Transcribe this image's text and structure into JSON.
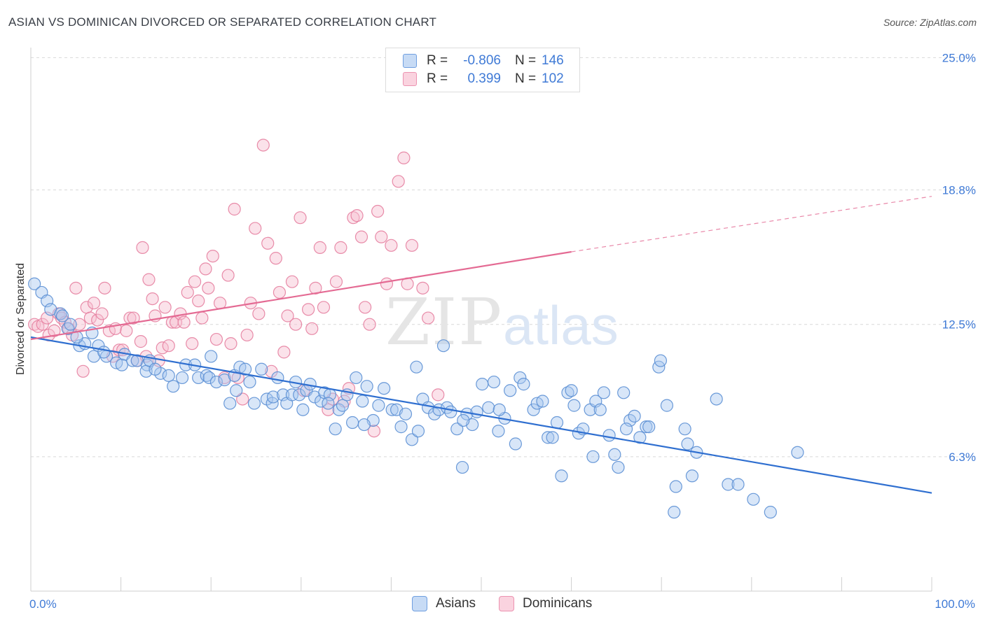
{
  "title": "ASIAN VS DOMINICAN DIVORCED OR SEPARATED CORRELATION CHART",
  "source": "Source: ZipAtlas.com",
  "legend": {
    "rows": [
      {
        "r_label": "R =",
        "r_value": "-0.806",
        "n_label": "N =",
        "n_value": "146"
      },
      {
        "r_label": "R =",
        "r_value": "0.399",
        "n_label": "N =",
        "n_value": "102"
      }
    ]
  },
  "bottom_legend": [
    "Asians",
    "Dominicans"
  ],
  "colors": {
    "asian_fill": "#a9c8f0",
    "asian_stroke": "#5b8fd4",
    "asian_line": "#2f6fd0",
    "dom_fill": "#f6bfd0",
    "dom_stroke": "#e67fa0",
    "dom_line": "#e46a93",
    "grid": "#d9d9d9",
    "tick_text": "#3f7ad6"
  },
  "chart_data": {
    "type": "scatter",
    "title": "ASIAN VS DOMINICAN DIVORCED OR SEPARATED CORRELATION CHART",
    "xlabel": "",
    "ylabel": "Divorced or Separated",
    "xlim": [
      0,
      100
    ],
    "ylim": [
      0,
      25.8
    ],
    "x_tick_labels": [
      "0.0%",
      "100.0%"
    ],
    "y_ticks": [
      6.3,
      12.5,
      18.8,
      25.0
    ],
    "y_tick_labels": [
      "6.3%",
      "12.5%",
      "18.8%",
      "25.0%"
    ],
    "series": [
      {
        "name": "Asians",
        "trend": {
          "x": [
            0,
            100
          ],
          "y": [
            11.9,
            4.6
          ],
          "dashed_from": null
        },
        "points": [
          [
            0.4,
            14.4
          ],
          [
            1.2,
            14.0
          ],
          [
            1.8,
            13.6
          ],
          [
            2.2,
            13.2
          ],
          [
            3.3,
            13.0
          ],
          [
            3.5,
            12.9
          ],
          [
            4.1,
            12.3
          ],
          [
            4.4,
            12.5
          ],
          [
            5.4,
            11.5
          ],
          [
            6.0,
            11.6
          ],
          [
            5.1,
            11.9
          ],
          [
            6.8,
            12.1
          ],
          [
            7.5,
            11.5
          ],
          [
            7.0,
            11.0
          ],
          [
            8.4,
            11.0
          ],
          [
            8.1,
            11.2
          ],
          [
            9.5,
            10.7
          ],
          [
            10.1,
            10.6
          ],
          [
            10.4,
            11.1
          ],
          [
            11.3,
            10.8
          ],
          [
            11.8,
            10.8
          ],
          [
            12.9,
            10.6
          ],
          [
            12.8,
            10.3
          ],
          [
            13.2,
            10.8
          ],
          [
            14.4,
            10.2
          ],
          [
            13.8,
            10.4
          ],
          [
            15.3,
            10.1
          ],
          [
            15.8,
            9.6
          ],
          [
            16.8,
            10.0
          ],
          [
            17.2,
            10.6
          ],
          [
            18.2,
            10.6
          ],
          [
            18.6,
            10.0
          ],
          [
            19.5,
            10.1
          ],
          [
            19.8,
            10.0
          ],
          [
            20.0,
            11.0
          ],
          [
            20.6,
            9.8
          ],
          [
            21.5,
            9.9
          ],
          [
            22.1,
            8.8
          ],
          [
            22.8,
            9.4
          ],
          [
            22.6,
            10.1
          ],
          [
            23.2,
            10.5
          ],
          [
            23.8,
            10.4
          ],
          [
            24.3,
            9.8
          ],
          [
            24.8,
            8.8
          ],
          [
            25.6,
            10.4
          ],
          [
            26.2,
            9.0
          ],
          [
            26.8,
            8.8
          ],
          [
            26.9,
            9.1
          ],
          [
            27.4,
            10.0
          ],
          [
            28.0,
            9.2
          ],
          [
            28.4,
            8.8
          ],
          [
            29.0,
            9.2
          ],
          [
            29.4,
            9.8
          ],
          [
            29.8,
            9.2
          ],
          [
            30.6,
            9.4
          ],
          [
            31.0,
            9.7
          ],
          [
            31.5,
            9.1
          ],
          [
            32.2,
            8.9
          ],
          [
            32.6,
            9.3
          ],
          [
            33.2,
            9.2
          ],
          [
            33.8,
            7.6
          ],
          [
            34.2,
            8.5
          ],
          [
            34.6,
            8.7
          ],
          [
            35.1,
            9.2
          ],
          [
            35.7,
            7.9
          ],
          [
            36.1,
            10.0
          ],
          [
            36.8,
            8.9
          ],
          [
            37.3,
            9.6
          ],
          [
            38.0,
            8.0
          ],
          [
            38.6,
            8.7
          ],
          [
            39.2,
            9.5
          ],
          [
            40.1,
            8.5
          ],
          [
            40.6,
            8.5
          ],
          [
            41.1,
            7.7
          ],
          [
            41.6,
            8.3
          ],
          [
            42.3,
            7.1
          ],
          [
            42.8,
            10.5
          ],
          [
            43.5,
            9.0
          ],
          [
            44.1,
            8.6
          ],
          [
            44.8,
            8.3
          ],
          [
            45.3,
            8.5
          ],
          [
            45.8,
            11.5
          ],
          [
            46.2,
            8.6
          ],
          [
            46.6,
            8.4
          ],
          [
            47.3,
            7.6
          ],
          [
            47.9,
            5.8
          ],
          [
            48.4,
            8.3
          ],
          [
            49.0,
            7.8
          ],
          [
            49.5,
            8.4
          ],
          [
            50.1,
            9.7
          ],
          [
            50.8,
            8.6
          ],
          [
            51.4,
            9.8
          ],
          [
            51.9,
            7.5
          ],
          [
            52.6,
            8.1
          ],
          [
            53.2,
            9.4
          ],
          [
            53.8,
            6.9
          ],
          [
            54.3,
            10.0
          ],
          [
            54.7,
            9.7
          ],
          [
            55.8,
            8.5
          ],
          [
            56.2,
            8.8
          ],
          [
            56.8,
            8.9
          ],
          [
            57.4,
            7.2
          ],
          [
            57.9,
            7.2
          ],
          [
            58.4,
            7.9
          ],
          [
            58.9,
            5.4
          ],
          [
            59.6,
            9.3
          ],
          [
            60.0,
            9.4
          ],
          [
            60.8,
            7.4
          ],
          [
            61.3,
            7.6
          ],
          [
            62.1,
            8.5
          ],
          [
            62.7,
            8.9
          ],
          [
            63.2,
            8.5
          ],
          [
            63.6,
            9.3
          ],
          [
            64.2,
            7.3
          ],
          [
            64.8,
            6.4
          ],
          [
            65.2,
            5.8
          ],
          [
            65.8,
            9.3
          ],
          [
            66.5,
            8.0
          ],
          [
            67.0,
            8.2
          ],
          [
            67.6,
            7.2
          ],
          [
            68.3,
            7.7
          ],
          [
            68.6,
            7.7
          ],
          [
            69.7,
            10.5
          ],
          [
            69.9,
            10.8
          ],
          [
            70.6,
            8.7
          ],
          [
            71.4,
            3.7
          ],
          [
            71.6,
            4.9
          ],
          [
            72.6,
            7.6
          ],
          [
            72.9,
            6.9
          ],
          [
            73.4,
            5.4
          ],
          [
            73.9,
            6.5
          ],
          [
            76.1,
            9.0
          ],
          [
            77.4,
            5.0
          ],
          [
            78.5,
            5.0
          ],
          [
            80.2,
            4.3
          ],
          [
            82.1,
            3.7
          ],
          [
            85.1,
            6.5
          ],
          [
            30.2,
            8.5
          ],
          [
            33.0,
            8.8
          ],
          [
            37.0,
            7.8
          ],
          [
            43.0,
            7.5
          ],
          [
            48.0,
            8.0
          ],
          [
            52.0,
            8.5
          ],
          [
            60.3,
            8.7
          ],
          [
            62.4,
            6.3
          ],
          [
            66.1,
            7.6
          ]
        ]
      },
      {
        "name": "Dominicans",
        "trend": {
          "x": [
            0,
            60,
            100
          ],
          "y": [
            11.8,
            15.9,
            18.5
          ],
          "dashed_from": 60
        },
        "points": [
          [
            0.4,
            12.5
          ],
          [
            0.8,
            12.4
          ],
          [
            1.3,
            12.5
          ],
          [
            1.8,
            12.8
          ],
          [
            2.0,
            12.0
          ],
          [
            2.6,
            12.2
          ],
          [
            3.1,
            13.0
          ],
          [
            3.4,
            12.8
          ],
          [
            3.8,
            12.6
          ],
          [
            4.2,
            12.3
          ],
          [
            4.6,
            12.0
          ],
          [
            5.0,
            14.2
          ],
          [
            5.4,
            12.5
          ],
          [
            5.8,
            10.3
          ],
          [
            6.2,
            13.3
          ],
          [
            6.6,
            12.8
          ],
          [
            7.0,
            13.5
          ],
          [
            7.4,
            12.7
          ],
          [
            7.9,
            13.0
          ],
          [
            8.2,
            14.2
          ],
          [
            8.7,
            12.2
          ],
          [
            9.1,
            11.0
          ],
          [
            9.4,
            12.3
          ],
          [
            9.8,
            11.3
          ],
          [
            10.2,
            11.3
          ],
          [
            10.6,
            12.2
          ],
          [
            11.0,
            12.8
          ],
          [
            11.4,
            12.8
          ],
          [
            11.8,
            10.8
          ],
          [
            12.2,
            11.7
          ],
          [
            12.4,
            16.1
          ],
          [
            12.8,
            11.0
          ],
          [
            13.1,
            14.6
          ],
          [
            13.5,
            13.7
          ],
          [
            13.8,
            12.9
          ],
          [
            14.2,
            10.8
          ],
          [
            14.6,
            11.4
          ],
          [
            14.9,
            13.3
          ],
          [
            15.3,
            11.5
          ],
          [
            15.7,
            12.6
          ],
          [
            16.1,
            12.6
          ],
          [
            16.6,
            13.0
          ],
          [
            17.0,
            12.6
          ],
          [
            17.4,
            14.0
          ],
          [
            17.9,
            11.6
          ],
          [
            18.2,
            14.5
          ],
          [
            18.6,
            13.6
          ],
          [
            19.0,
            12.8
          ],
          [
            19.4,
            15.1
          ],
          [
            19.7,
            14.2
          ],
          [
            20.2,
            15.7
          ],
          [
            20.6,
            11.8
          ],
          [
            21.0,
            13.5
          ],
          [
            21.5,
            10.0
          ],
          [
            21.9,
            14.8
          ],
          [
            22.2,
            11.6
          ],
          [
            22.6,
            17.9
          ],
          [
            23.0,
            10.0
          ],
          [
            23.5,
            9.0
          ],
          [
            24.0,
            12.0
          ],
          [
            24.4,
            13.5
          ],
          [
            24.9,
            17.0
          ],
          [
            25.3,
            13.0
          ],
          [
            25.8,
            20.9
          ],
          [
            26.3,
            16.3
          ],
          [
            26.7,
            10.3
          ],
          [
            27.2,
            15.6
          ],
          [
            27.6,
            14.0
          ],
          [
            28.1,
            11.2
          ],
          [
            28.5,
            12.9
          ],
          [
            29.0,
            14.5
          ],
          [
            29.4,
            12.5
          ],
          [
            29.9,
            17.5
          ],
          [
            30.3,
            9.4
          ],
          [
            30.8,
            13.2
          ],
          [
            31.2,
            12.3
          ],
          [
            31.6,
            14.2
          ],
          [
            32.1,
            16.1
          ],
          [
            32.5,
            13.3
          ],
          [
            33.0,
            8.5
          ],
          [
            33.5,
            9.0
          ],
          [
            33.9,
            14.5
          ],
          [
            34.4,
            16.1
          ],
          [
            34.8,
            8.9
          ],
          [
            35.3,
            9.5
          ],
          [
            35.8,
            17.5
          ],
          [
            36.2,
            17.6
          ],
          [
            36.7,
            16.6
          ],
          [
            37.1,
            13.3
          ],
          [
            37.6,
            12.5
          ],
          [
            38.1,
            7.5
          ],
          [
            38.5,
            17.8
          ],
          [
            38.9,
            16.6
          ],
          [
            39.5,
            14.4
          ],
          [
            40.0,
            16.2
          ],
          [
            40.8,
            19.2
          ],
          [
            41.4,
            20.3
          ],
          [
            41.8,
            14.4
          ],
          [
            42.3,
            16.2
          ],
          [
            43.5,
            14.2
          ],
          [
            44.1,
            12.8
          ],
          [
            45.2,
            9.2
          ]
        ]
      }
    ]
  }
}
